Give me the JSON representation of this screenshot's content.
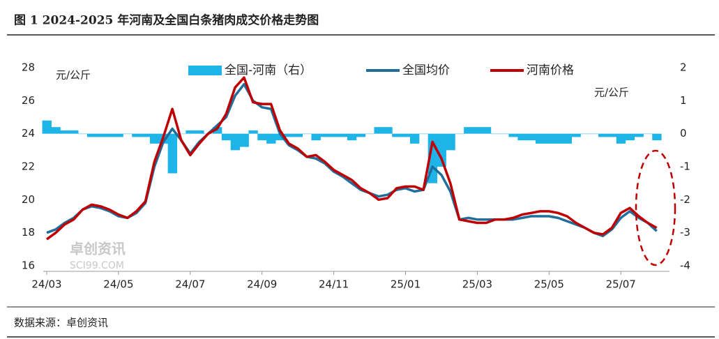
{
  "header": {
    "title": "图 1 2024-2025 年河南及全国白条猪肉成交价格走势图"
  },
  "source": "数据来源：卓创资讯",
  "watermark": {
    "name": "卓创资讯",
    "site": "SCI99.COM"
  },
  "chart_data": {
    "type": "line",
    "y_unit": "元/公斤",
    "y2_unit": "元/公斤",
    "categories": [
      "24/03",
      null,
      null,
      null,
      null,
      null,
      null,
      null,
      "24/05",
      null,
      null,
      null,
      null,
      null,
      null,
      null,
      "24/07",
      null,
      null,
      null,
      null,
      null,
      null,
      null,
      "24/09",
      null,
      null,
      null,
      null,
      null,
      null,
      null,
      "24/11",
      null,
      null,
      null,
      null,
      null,
      null,
      null,
      "25/01",
      null,
      null,
      null,
      null,
      null,
      null,
      null,
      "25/03",
      null,
      null,
      null,
      null,
      null,
      null,
      null,
      "25/05",
      null,
      null,
      null,
      null,
      null,
      null,
      null,
      "25/07",
      null,
      null,
      null,
      null
    ],
    "ylim": [
      16,
      28
    ],
    "yticks": [
      16,
      18,
      20,
      22,
      24,
      26,
      28
    ],
    "y2lim": [
      -4,
      2
    ],
    "y2ticks": [
      -4,
      -3,
      -2,
      -1,
      0,
      1,
      2
    ],
    "series": [
      {
        "name": "全国-河南（右）",
        "color": "#1fb4e8",
        "axis": "y2",
        "kind": "area",
        "values": [
          0.4,
          0.2,
          0.1,
          0.1,
          0,
          -0.1,
          -0.1,
          -0.1,
          -0.1,
          0,
          -0.1,
          -0.1,
          -0.3,
          -0.3,
          -1.2,
          0,
          0.1,
          0.1,
          0,
          0.2,
          -0.2,
          -0.5,
          -0.4,
          0.1,
          -0.2,
          -0.3,
          -0.2,
          -0.1,
          -0.1,
          0,
          -0.2,
          -0.1,
          -0.1,
          -0.1,
          -0.2,
          -0.1,
          0,
          0.2,
          0.2,
          -0.1,
          -0.1,
          -0.3,
          0,
          -1.5,
          -1,
          -0.5,
          0,
          0.2,
          0.2,
          0.2,
          0,
          0,
          -0.1,
          -0.2,
          -0.2,
          -0.3,
          -0.3,
          -0.3,
          -0.3,
          -0.1,
          0,
          0,
          -0.1,
          -0.1,
          -0.3,
          -0.2,
          -0.1,
          0,
          -0.2
        ]
      },
      {
        "name": "全国均价",
        "color": "#1f6e9c",
        "values": [
          18.0,
          18.2,
          18.6,
          18.9,
          19.4,
          19.6,
          19.5,
          19.3,
          19.0,
          18.9,
          19.2,
          19.8,
          22.0,
          23.5,
          24.3,
          23.6,
          22.8,
          23.5,
          24.0,
          24.5,
          25.0,
          26.3,
          27.0,
          26.0,
          25.6,
          25.5,
          24.0,
          23.3,
          23.0,
          22.6,
          22.5,
          22.2,
          21.7,
          21.4,
          21.0,
          20.6,
          20.4,
          20.2,
          20.3,
          20.6,
          20.7,
          20.5,
          20.6,
          22.0,
          21.5,
          20.5,
          18.8,
          18.9,
          18.8,
          18.8,
          18.8,
          18.8,
          18.8,
          18.9,
          19.0,
          19.0,
          19.0,
          18.9,
          18.7,
          18.5,
          18.3,
          18.0,
          17.8,
          18.2,
          18.9,
          19.3,
          18.9,
          18.6,
          18.1
        ]
      },
      {
        "name": "河南价格",
        "color": "#c00000",
        "values": [
          17.6,
          18.0,
          18.5,
          18.8,
          19.4,
          19.7,
          19.6,
          19.4,
          19.1,
          18.9,
          19.3,
          19.9,
          22.3,
          23.8,
          25.5,
          23.6,
          22.7,
          23.4,
          24.0,
          24.3,
          25.2,
          26.8,
          27.4,
          25.9,
          25.8,
          25.8,
          24.2,
          23.4,
          23.1,
          22.6,
          22.7,
          22.3,
          21.8,
          21.5,
          21.2,
          20.7,
          20.4,
          20.0,
          20.1,
          20.7,
          20.8,
          20.8,
          20.6,
          23.5,
          22.5,
          21.0,
          18.8,
          18.7,
          18.6,
          18.6,
          18.8,
          18.8,
          18.9,
          19.1,
          19.2,
          19.3,
          19.3,
          19.2,
          19.0,
          18.6,
          18.3,
          18.0,
          17.9,
          18.3,
          19.2,
          19.5,
          19.0,
          18.6,
          18.3
        ]
      }
    ]
  }
}
